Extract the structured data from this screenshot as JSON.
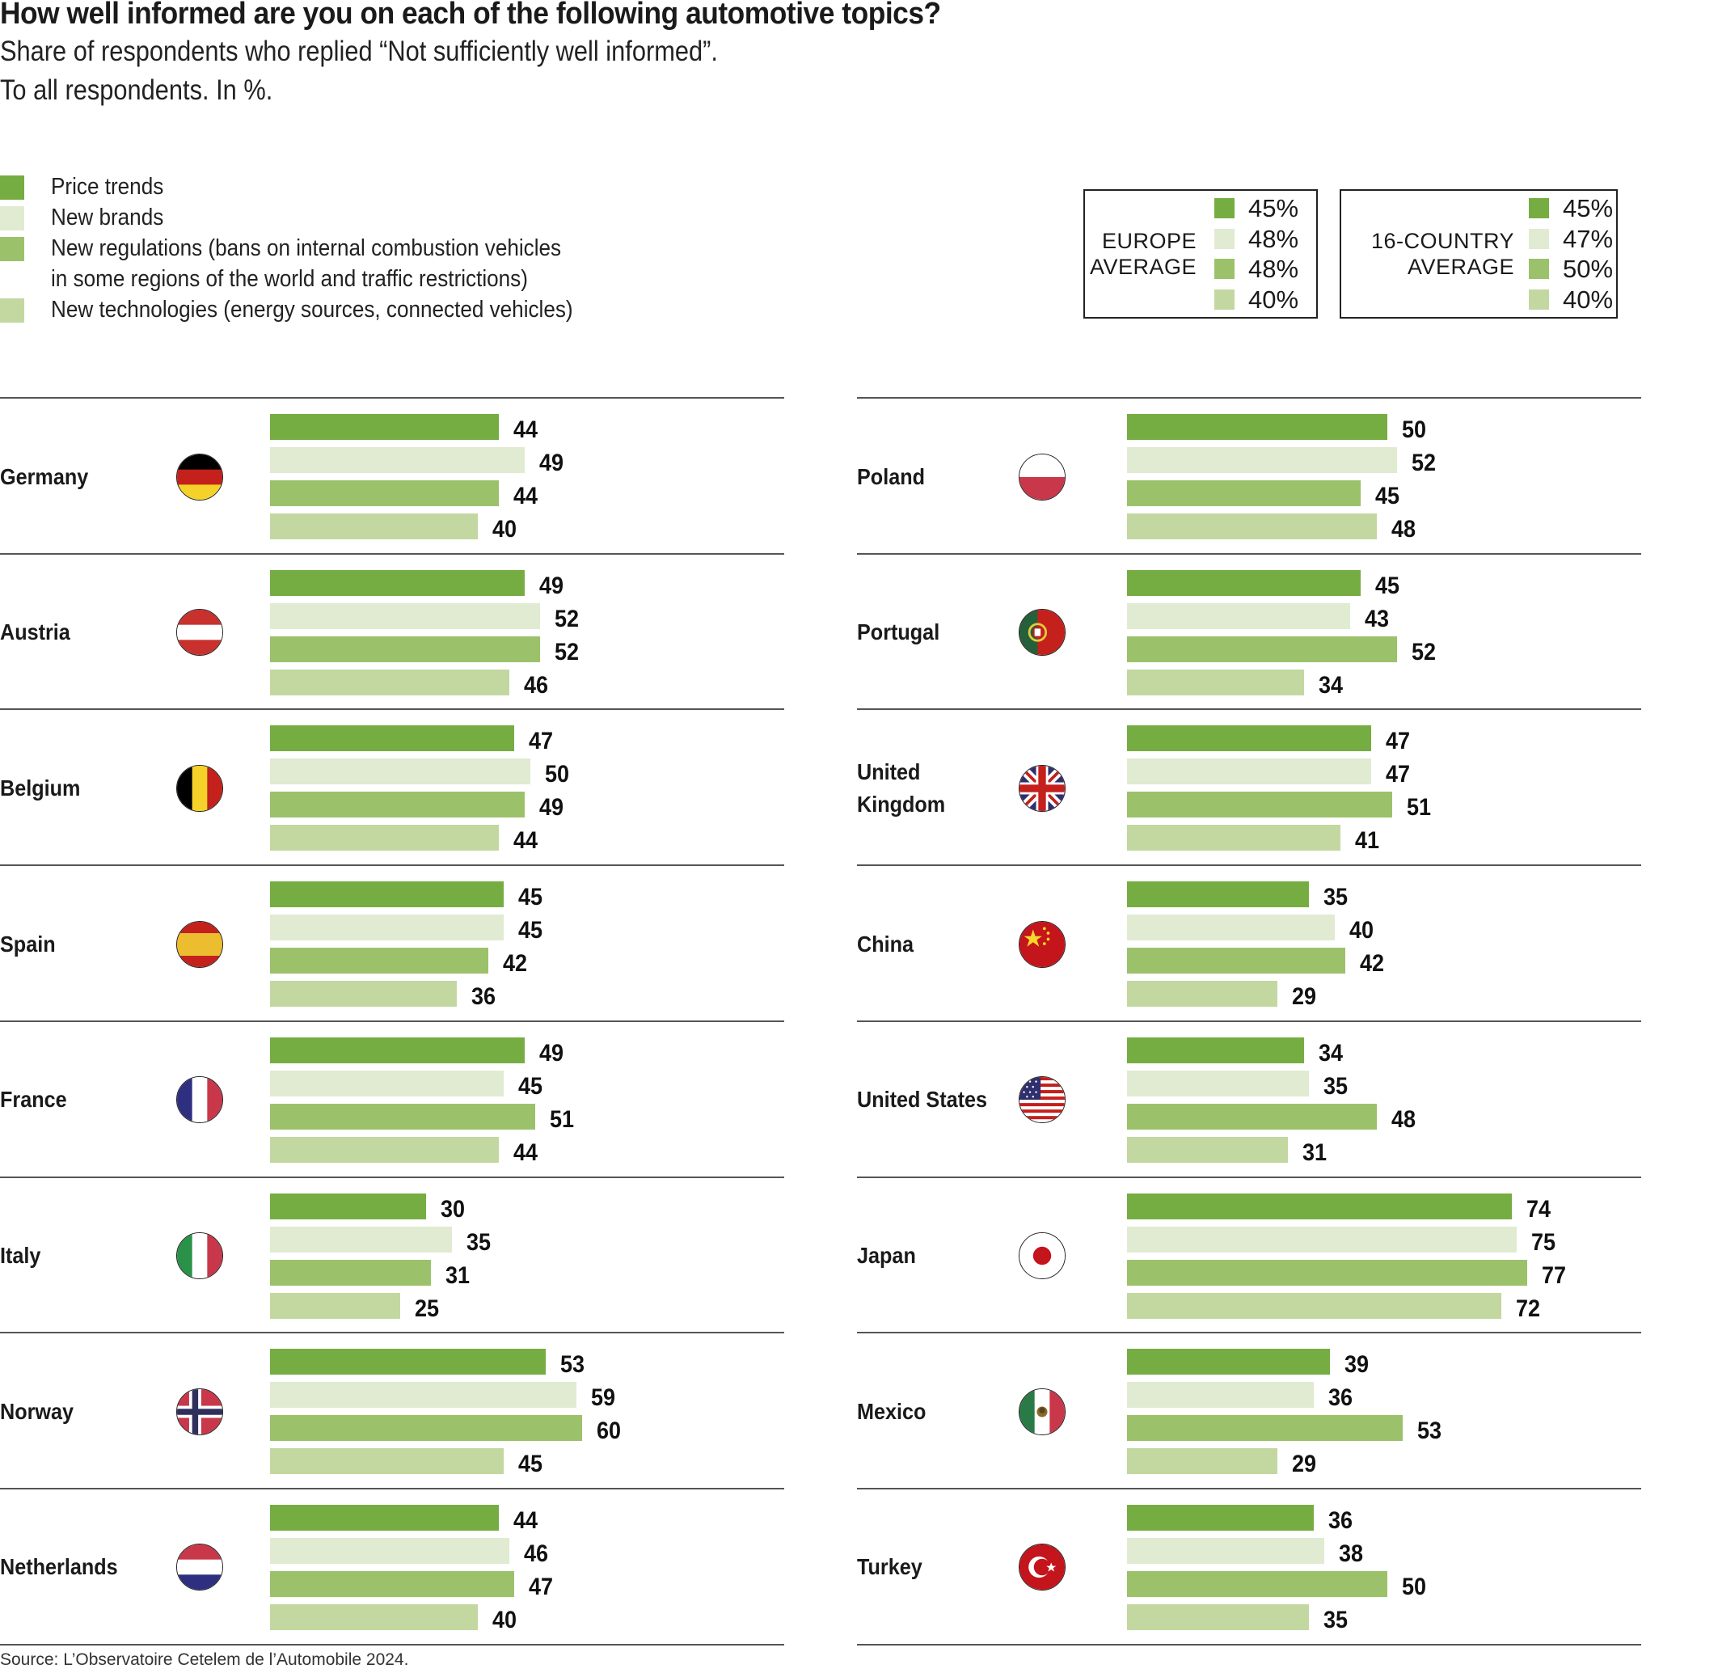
{
  "chart_data": {
    "type": "bar",
    "orientation": "horizontal",
    "title": "How well informed are you on each of the following automotive topics?",
    "subtitle": "Share of respondents who replied “Not sufficiently well informed”.",
    "subtitle2": "To all respondents. In %.",
    "xlabel": "",
    "ylabel": "",
    "unit": "%",
    "grid": false,
    "legend_position": "top-left",
    "series_names": [
      "Price trends",
      "New brands",
      "New regulations (bans on internal combustion vehicles in some regions of the world and traffic restrictions)",
      "New technologies (energy sources, connected vehicles)"
    ],
    "legend": [
      {
        "lines": [
          "Price trends"
        ],
        "color": "#76ad42"
      },
      {
        "lines": [
          "New brands"
        ],
        "color": "#e0ebd1"
      },
      {
        "lines": [
          "New regulations (bans on internal combustion vehicles",
          "in some regions of the world and traffic restrictions)"
        ],
        "color": "#9cc16b"
      },
      {
        "lines": [
          "New technologies (energy sources, connected vehicles)"
        ],
        "color": "#c2d8a0"
      }
    ],
    "averages": [
      {
        "label_lines": [
          "EUROPE",
          "AVERAGE"
        ],
        "values": [
          "45%",
          "48%",
          "48%",
          "40%"
        ]
      },
      {
        "label_lines": [
          "16-COUNTRY",
          "AVERAGE"
        ],
        "values": [
          "45%",
          "47%",
          "50%",
          "40%"
        ]
      }
    ],
    "columns": [
      {
        "countries": [
          {
            "name_lines": [
              "Germany"
            ],
            "flag": "germany-flag",
            "values": [
              44,
              49,
              44,
              40
            ]
          },
          {
            "name_lines": [
              "Austria"
            ],
            "flag": "austria-flag",
            "values": [
              49,
              52,
              52,
              46
            ]
          },
          {
            "name_lines": [
              "Belgium"
            ],
            "flag": "belgium-flag",
            "values": [
              47,
              50,
              49,
              44
            ]
          },
          {
            "name_lines": [
              "Spain"
            ],
            "flag": "spain-flag",
            "values": [
              45,
              45,
              42,
              36
            ]
          },
          {
            "name_lines": [
              "France"
            ],
            "flag": "france-flag",
            "values": [
              49,
              45,
              51,
              44
            ]
          },
          {
            "name_lines": [
              "Italy"
            ],
            "flag": "italy-flag",
            "values": [
              30,
              35,
              31,
              25
            ]
          },
          {
            "name_lines": [
              "Norway"
            ],
            "flag": "norway-flag",
            "values": [
              53,
              59,
              60,
              45
            ]
          },
          {
            "name_lines": [
              "Netherlands"
            ],
            "flag": "netherlands-flag",
            "values": [
              44,
              46,
              47,
              40
            ]
          }
        ]
      },
      {
        "countries": [
          {
            "name_lines": [
              "Poland"
            ],
            "flag": "poland-flag",
            "values": [
              50,
              52,
              45,
              48
            ]
          },
          {
            "name_lines": [
              "Portugal"
            ],
            "flag": "portugal-flag",
            "values": [
              45,
              43,
              52,
              34
            ]
          },
          {
            "name_lines": [
              "United",
              "Kingdom"
            ],
            "flag": "united-kingdom-flag",
            "values": [
              47,
              47,
              51,
              41
            ]
          },
          {
            "name_lines": [
              "China"
            ],
            "flag": "china-flag",
            "values": [
              35,
              40,
              42,
              29
            ]
          },
          {
            "name_lines": [
              "United States"
            ],
            "flag": "united-states-flag",
            "values": [
              34,
              35,
              48,
              31
            ]
          },
          {
            "name_lines": [
              "Japan"
            ],
            "flag": "japan-flag",
            "values": [
              74,
              75,
              77,
              72
            ]
          },
          {
            "name_lines": [
              "Mexico"
            ],
            "flag": "mexico-flag",
            "values": [
              39,
              36,
              53,
              29
            ]
          },
          {
            "name_lines": [
              "Turkey"
            ],
            "flag": "turkey-flag",
            "values": [
              36,
              38,
              50,
              35
            ]
          }
        ]
      }
    ],
    "source": "Source: L’Observatoire Cetelem de l’Automobile 2024."
  },
  "colors": {
    "price_trends": "#76ad42",
    "new_brands": "#e0ebd1",
    "new_regulations": "#9cc16b",
    "new_technologies": "#c2d8a0"
  }
}
